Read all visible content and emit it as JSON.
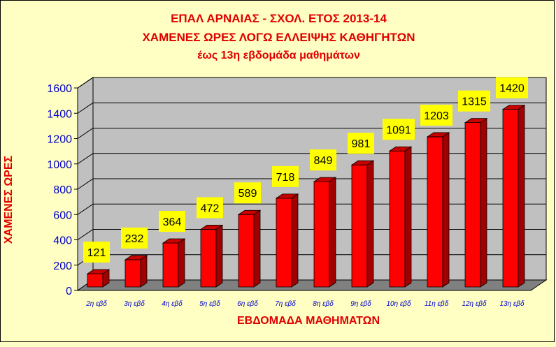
{
  "chart_data": {
    "type": "bar",
    "title": [
      "ΕΠΑΛ ΑΡΝΑΙΑΣ - ΣΧΟΛ. ΕΤΟΣ 2013-14",
      "ΧΑΜΕΝΕΣ ΩΡΕΣ ΛΟΓΩ ΕΛΛΕΙΨΗΣ ΚΑΘΗΓΗΤΩΝ",
      "έως 13η εβδομάδα μαθημάτων"
    ],
    "xlabel": "ΕΒΔΟΜΑΔΑ ΜΑΘΗΜΑΤΩΝ",
    "ylabel": "ΧΑΜΕΝΕΣ ΩΡΕΣ",
    "categories": [
      "2η εβδ",
      "3η εβδ",
      "4η εβδ",
      "5η εβδ",
      "6η εβδ",
      "7η εβδ",
      "8η εβδ",
      "9η εβδ",
      "10η εβδ",
      "11η εβδ",
      "12η εβδ",
      "13η εβδ"
    ],
    "values": [
      121,
      232,
      364,
      472,
      589,
      718,
      849,
      981,
      1091,
      1203,
      1315,
      1420
    ],
    "value_labels": [
      "121",
      "232",
      "364",
      "472",
      "589",
      "718",
      "849",
      "981",
      "1091",
      "1203",
      "1315",
      "1420"
    ],
    "ylim": [
      0,
      1600
    ],
    "yticks": [
      0,
      200,
      400,
      600,
      800,
      1000,
      1200,
      1400,
      1600
    ],
    "ytick_labels": [
      "0",
      "200",
      "400",
      "600",
      "800",
      "1000",
      "1200",
      "1400",
      "1600"
    ],
    "grid": true,
    "colors": {
      "bar": "#ff0000",
      "bar_side": "#a00000",
      "bar_top": "#c80000",
      "plot_wall": "#c0c0c0",
      "floor": "#808080",
      "label_box": "#ffff00",
      "title": "#e00000",
      "ticks": "#0000cc",
      "background": "#ffffc4"
    }
  }
}
